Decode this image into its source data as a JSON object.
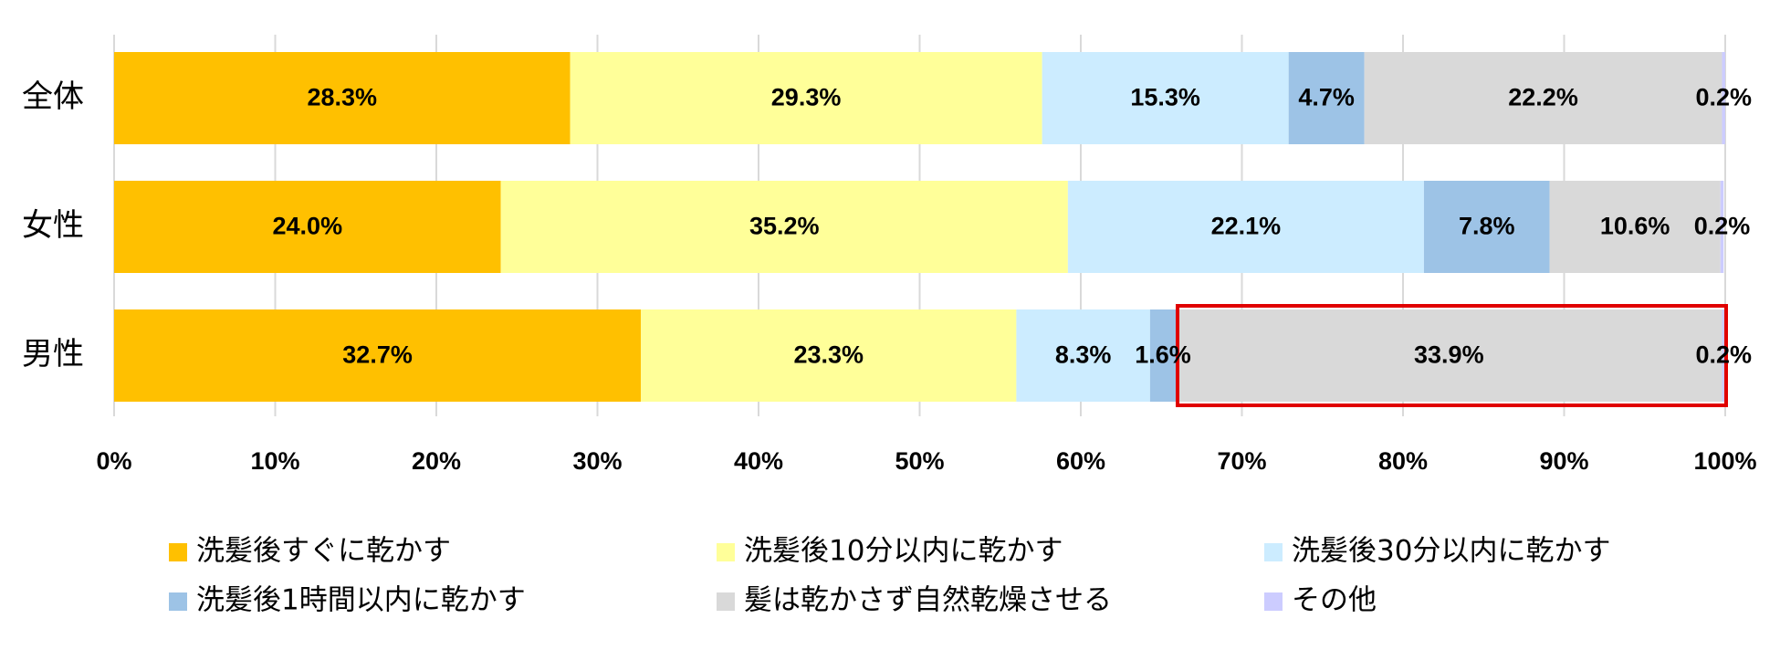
{
  "chart_data": {
    "type": "stacked-barh",
    "categories": [
      "全体",
      "女性",
      "男性"
    ],
    "series": [
      {
        "name": "洗髪後すぐに乾かす",
        "color": "#FFC000",
        "values": [
          28.3,
          24.0,
          32.7
        ],
        "value_labels": [
          "28.3%",
          "24.0%",
          "32.7%"
        ]
      },
      {
        "name": "洗髪後10分以内に乾かす",
        "color": "#FFFF99",
        "values": [
          29.3,
          35.2,
          23.3
        ],
        "value_labels": [
          "29.3%",
          "35.2%",
          "23.3%"
        ]
      },
      {
        "name": "洗髪後30分以内に乾かす",
        "color": "#CCECFF",
        "values": [
          15.3,
          22.1,
          8.3
        ],
        "value_labels": [
          "15.3%",
          "22.1%",
          "8.3%"
        ]
      },
      {
        "name": "洗髪後1時間以内に乾かす",
        "color": "#9DC3E6",
        "values": [
          4.7,
          7.8,
          1.6
        ],
        "value_labels": [
          "4.7%",
          "7.8%",
          "1.6%"
        ]
      },
      {
        "name": "髪は乾かさず自然乾燥させる",
        "color": "#D9D9D9",
        "values": [
          22.2,
          10.6,
          33.9
        ],
        "value_labels": [
          "22.2%",
          "10.6%",
          "33.9%"
        ]
      },
      {
        "name": "その他",
        "color": "#CCCCFF",
        "values": [
          0.2,
          0.2,
          0.2
        ],
        "value_labels": [
          "0.2%",
          "0.2%",
          "0.2%"
        ]
      }
    ],
    "xlim": [
      0,
      100
    ],
    "xticks": [
      {
        "value": 0,
        "label": "0%"
      },
      {
        "value": 10,
        "label": "10%"
      },
      {
        "value": 20,
        "label": "20%"
      },
      {
        "value": 30,
        "label": "30%"
      },
      {
        "value": 40,
        "label": "40%"
      },
      {
        "value": 50,
        "label": "50%"
      },
      {
        "value": 60,
        "label": "60%"
      },
      {
        "value": 70,
        "label": "70%"
      },
      {
        "value": 80,
        "label": "80%"
      },
      {
        "value": 90,
        "label": "90%"
      },
      {
        "value": 100,
        "label": "100%"
      }
    ],
    "grid": true
  }
}
